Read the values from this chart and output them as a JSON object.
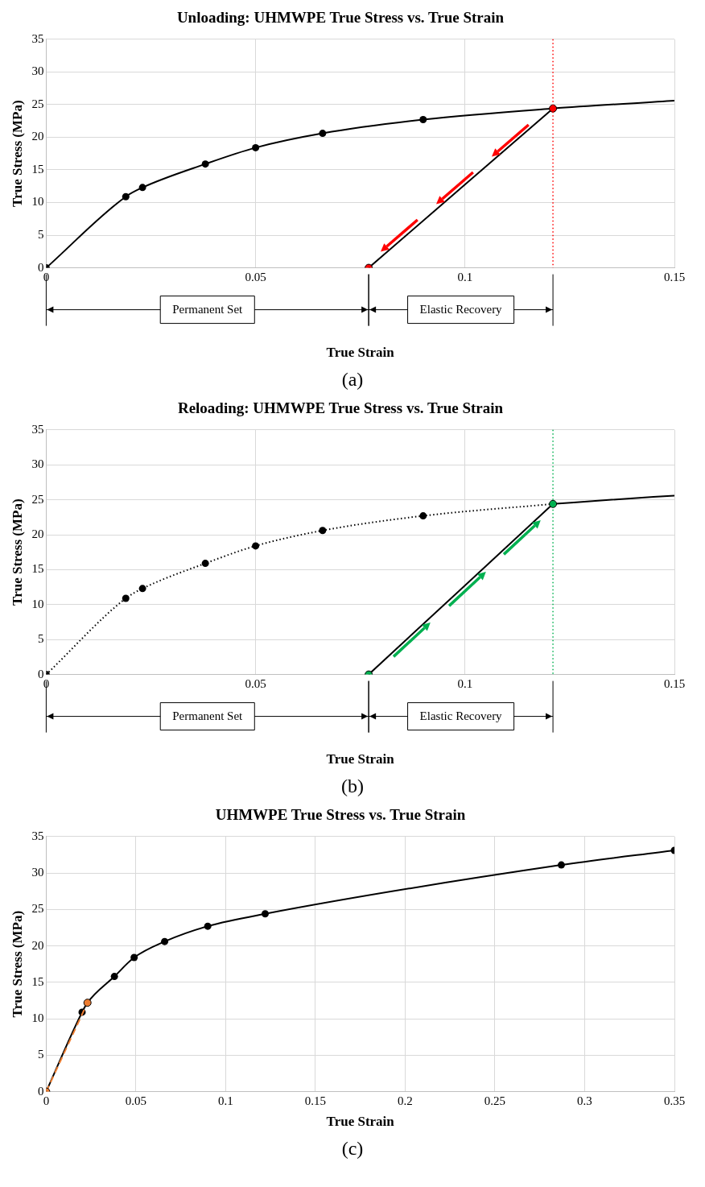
{
  "chart_data": [
    {
      "type": "line",
      "title": "Unloading: UHMWPE True Stress vs. True Strain",
      "xlabel": "True Strain",
      "ylabel": "True Stress (MPa)",
      "xlim": [
        0,
        0.15
      ],
      "xticks": [
        0,
        0.05,
        0.1,
        0.15
      ],
      "ylim": [
        0,
        35
      ],
      "yticks": [
        0,
        5,
        10,
        15,
        20,
        25,
        30,
        35
      ],
      "grid": true,
      "series": [
        {
          "type": "line",
          "marker": "none",
          "color": "#000000",
          "x": [
            0,
            0.019,
            0.023,
            0.038,
            0.05,
            0.066,
            0.09,
            0.121,
            0.15
          ],
          "values": [
            0,
            10.9,
            12.3,
            15.9,
            18.4,
            20.6,
            22.7,
            24.4,
            25.6
          ]
        },
        {
          "type": "scatter",
          "marker": "circle",
          "color": "#000000",
          "x": [
            0.019,
            0.023,
            0.038,
            0.05,
            0.066,
            0.09
          ],
          "values": [
            10.9,
            12.3,
            15.9,
            18.4,
            20.6,
            22.7
          ]
        },
        {
          "type": "line",
          "marker": "none",
          "color": "#000000",
          "x": [
            0.121,
            0.077
          ],
          "values": [
            24.4,
            0
          ]
        },
        {
          "type": "scatter",
          "marker": "circle",
          "color": "#ff0000",
          "x": [
            0.121,
            0.077
          ],
          "values": [
            24.4,
            0
          ]
        },
        {
          "type": "scatter",
          "marker": "circle",
          "color": "#000000",
          "x": [
            0
          ],
          "values": [
            0
          ]
        }
      ],
      "ref_lines": [
        {
          "axis": "x",
          "value": 0.121,
          "color": "#ff0000",
          "line_style": "dotted"
        }
      ],
      "annotations": [
        "Permanent Set",
        "Elastic Recovery",
        "(a)"
      ]
    },
    {
      "type": "line",
      "title": "Reloading: UHMWPE True Stress vs. True Strain",
      "xlabel": "True Strain",
      "ylabel": "True Stress (MPa)",
      "xlim": [
        0,
        0.15
      ],
      "xticks": [
        0,
        0.05,
        0.1,
        0.15
      ],
      "ylim": [
        0,
        35
      ],
      "yticks": [
        0,
        5,
        10,
        15,
        20,
        25,
        30,
        35
      ],
      "grid": true,
      "series": [
        {
          "type": "line",
          "marker": "none",
          "line_style": "dotted",
          "color": "#000000",
          "x": [
            0,
            0.019,
            0.023,
            0.038,
            0.05,
            0.066,
            0.09,
            0.121
          ],
          "values": [
            0,
            10.9,
            12.3,
            15.9,
            18.4,
            20.6,
            22.7,
            24.4
          ]
        },
        {
          "type": "line",
          "marker": "none",
          "color": "#000000",
          "x": [
            0.121,
            0.135,
            0.15
          ],
          "values": [
            24.4,
            25.0,
            25.6
          ]
        },
        {
          "type": "scatter",
          "marker": "circle",
          "color": "#000000",
          "x": [
            0,
            0.019,
            0.023,
            0.038,
            0.05,
            0.066,
            0.09
          ],
          "values": [
            0,
            10.9,
            12.3,
            15.9,
            18.4,
            20.6,
            22.7
          ]
        },
        {
          "type": "line",
          "marker": "none",
          "color": "#000000",
          "x": [
            0.077,
            0.121
          ],
          "values": [
            0,
            24.4
          ]
        },
        {
          "type": "scatter",
          "marker": "circle",
          "color": "#00b050",
          "x": [
            0.077,
            0.121
          ],
          "values": [
            0,
            24.4
          ]
        }
      ],
      "ref_lines": [
        {
          "axis": "x",
          "value": 0.121,
          "color": "#00b050",
          "line_style": "dotted"
        }
      ],
      "annotations": [
        "Permanent Set",
        "Elastic Recovery",
        "(b)"
      ]
    },
    {
      "type": "line",
      "title": "UHMWPE True Stress vs. True Strain",
      "xlabel": "True Strain",
      "ylabel": "True Stress (MPa)",
      "xlim": [
        0,
        0.35
      ],
      "xticks": [
        0,
        0.05,
        0.1,
        0.15,
        0.2,
        0.25,
        0.3,
        0.35
      ],
      "ylim": [
        0,
        35
      ],
      "yticks": [
        0,
        5,
        10,
        15,
        20,
        25,
        30,
        35
      ],
      "grid": true,
      "series": [
        {
          "type": "line",
          "marker": "none",
          "color": "#000000",
          "x": [
            0,
            0.02,
            0.023,
            0.038,
            0.049,
            0.066,
            0.09,
            0.122,
            0.287,
            0.35
          ],
          "values": [
            0,
            10.9,
            12.2,
            15.8,
            18.4,
            20.6,
            22.7,
            24.4,
            31.1,
            33.1
          ]
        },
        {
          "type": "scatter",
          "marker": "circle",
          "color": "#000000",
          "x": [
            0.02,
            0.038,
            0.049,
            0.066,
            0.09,
            0.122,
            0.287,
            0.35
          ],
          "values": [
            10.9,
            15.8,
            18.4,
            20.6,
            22.7,
            24.4,
            31.1,
            33.1
          ]
        },
        {
          "type": "line",
          "marker": "none",
          "line_style": "dashed",
          "color": "#ed7d31",
          "x": [
            0,
            0.023
          ],
          "values": [
            0,
            12.2
          ]
        },
        {
          "type": "scatter",
          "marker": "circle",
          "color": "#ed7d31",
          "x": [
            0,
            0.023
          ],
          "values": [
            0,
            12.2
          ]
        }
      ],
      "annotations": [
        "(c)"
      ]
    }
  ]
}
